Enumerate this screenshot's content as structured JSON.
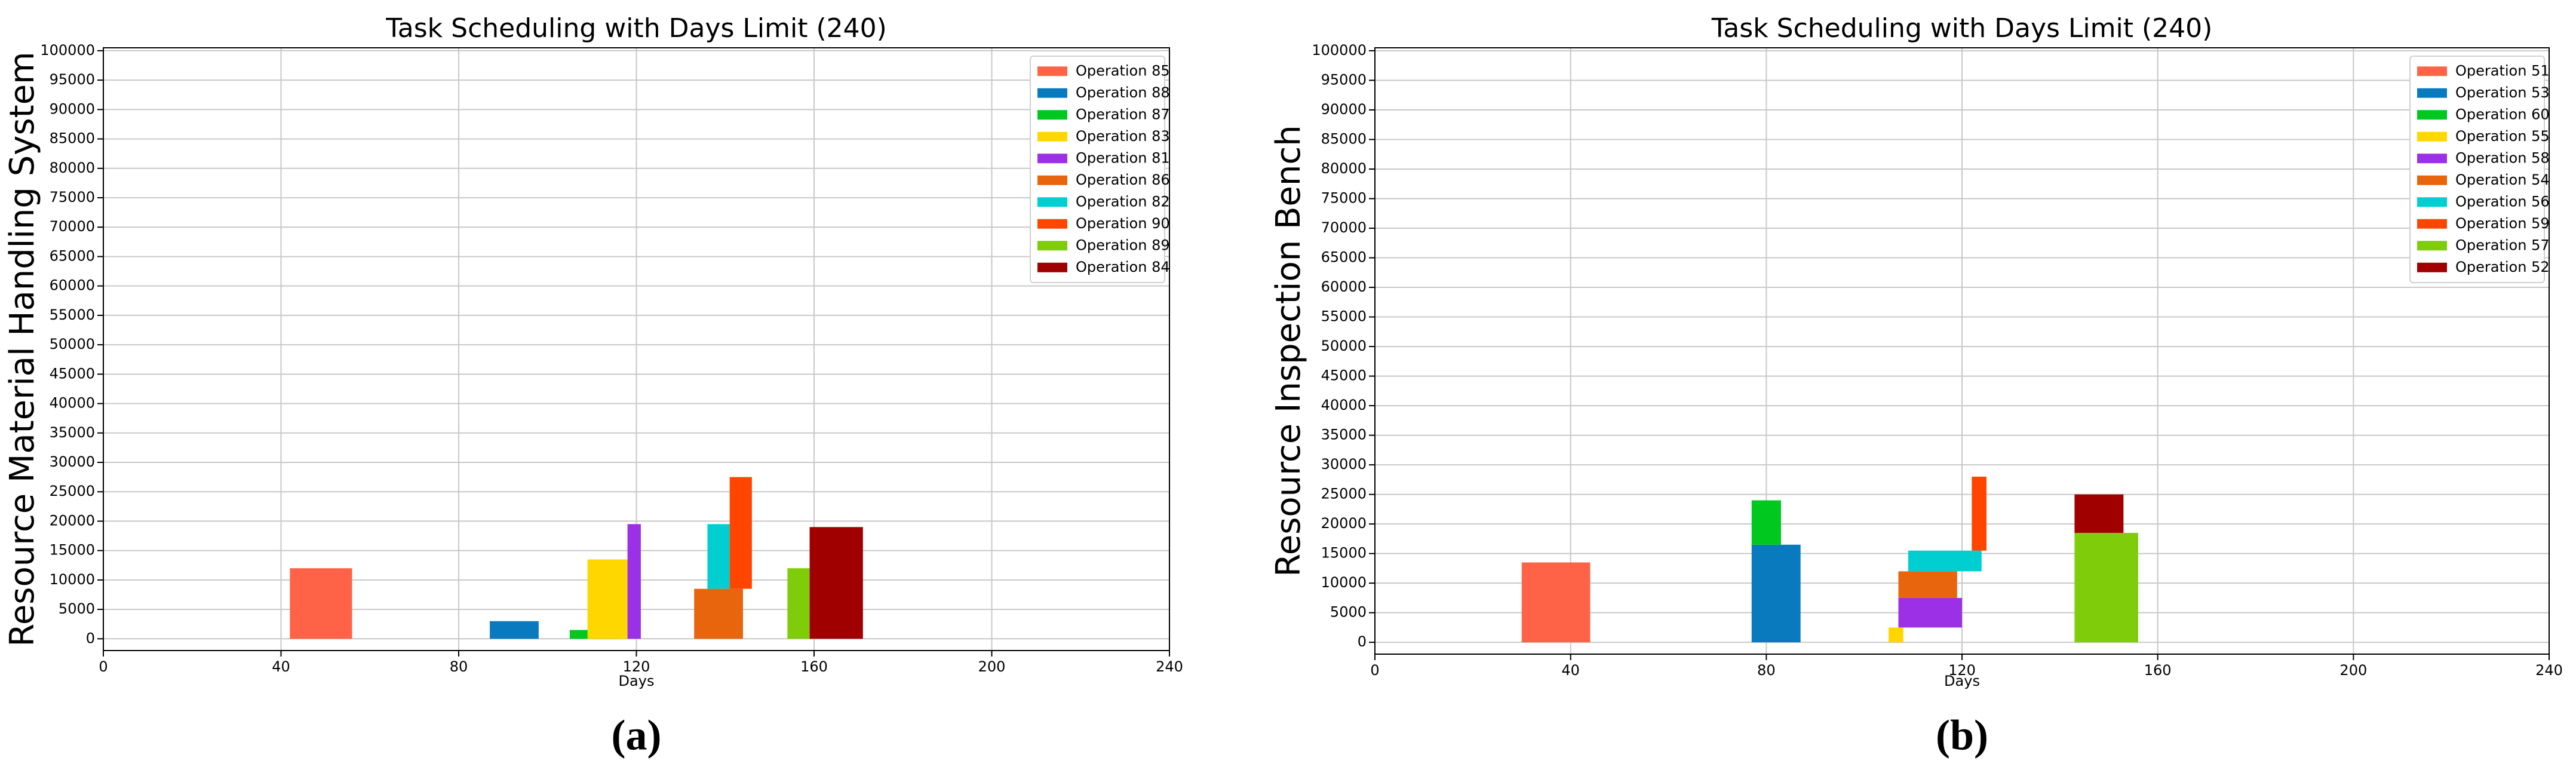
{
  "chart_data": [
    {
      "type": "gantt",
      "title": "Task Scheduling with Days Limit (240)",
      "xlabel": "Days",
      "ylabel": "Resource Material Handling System",
      "caption": "(a)",
      "xlim": [
        0,
        240
      ],
      "xticks": [
        0,
        40,
        80,
        120,
        160,
        200,
        240
      ],
      "ylim": [
        -2000,
        100500
      ],
      "yticks": [
        0,
        5000,
        10000,
        15000,
        20000,
        25000,
        30000,
        35000,
        40000,
        45000,
        50000,
        55000,
        60000,
        65000,
        70000,
        75000,
        80000,
        85000,
        90000,
        95000,
        100000
      ],
      "grid": true,
      "legend": "upper right",
      "series": [
        {
          "name": "Operation 85",
          "color": "#ff6347",
          "start": [
            42
          ],
          "duration": [
            14
          ],
          "base": [
            0
          ],
          "values": [
            12000
          ]
        },
        {
          "name": "Operation 88",
          "color": "#0a7abf",
          "start": [
            87
          ],
          "duration": [
            11
          ],
          "base": [
            0
          ],
          "values": [
            3000
          ]
        },
        {
          "name": "Operation 87",
          "color": "#00c81e",
          "start": [
            105
          ],
          "duration": [
            11
          ],
          "base": [
            0
          ],
          "values": [
            1500
          ]
        },
        {
          "name": "Operation 83",
          "color": "#ffd700",
          "start": [
            109
          ],
          "duration": [
            9
          ],
          "base": [
            0
          ],
          "values": [
            13500
          ]
        },
        {
          "name": "Operation 81",
          "color": "#9b30e6",
          "start": [
            118
          ],
          "duration": [
            3
          ],
          "base": [
            0
          ],
          "values": [
            19500
          ]
        },
        {
          "name": "Operation 86",
          "color": "#e8650e",
          "start": [
            133
          ],
          "duration": [
            11
          ],
          "base": [
            0
          ],
          "values": [
            8500
          ]
        },
        {
          "name": "Operation 82",
          "color": "#00ced1",
          "start": [
            136
          ],
          "duration": [
            5
          ],
          "base": [
            8500
          ],
          "values": [
            11000
          ]
        },
        {
          "name": "Operation 90",
          "color": "#ff4500",
          "start": [
            141
          ],
          "duration": [
            5
          ],
          "base": [
            8500
          ],
          "values": [
            19000
          ]
        },
        {
          "name": "Operation 89",
          "color": "#7fcc0a",
          "start": [
            154
          ],
          "duration": [
            5
          ],
          "base": [
            0
          ],
          "values": [
            12000
          ]
        },
        {
          "name": "Operation 84",
          "color": "#a00000",
          "start": [
            159
          ],
          "duration": [
            12
          ],
          "base": [
            0
          ],
          "values": [
            19000
          ]
        }
      ]
    },
    {
      "type": "gantt",
      "title": "Task Scheduling with Days Limit (240)",
      "xlabel": "Days",
      "ylabel": "Resource Inspection Bench",
      "caption": "(b)",
      "xlim": [
        0,
        240
      ],
      "xticks": [
        0,
        40,
        80,
        120,
        160,
        200,
        240
      ],
      "ylim": [
        -2000,
        100500
      ],
      "yticks": [
        0,
        5000,
        10000,
        15000,
        20000,
        25000,
        30000,
        35000,
        40000,
        45000,
        50000,
        55000,
        60000,
        65000,
        70000,
        75000,
        80000,
        85000,
        90000,
        95000,
        100000
      ],
      "grid": true,
      "legend": "upper right",
      "series": [
        {
          "name": "Operation 51",
          "color": "#ff6347",
          "start": [
            30
          ],
          "duration": [
            14
          ],
          "base": [
            0
          ],
          "values": [
            13500
          ]
        },
        {
          "name": "Operation 53",
          "color": "#0a7abf",
          "start": [
            77
          ],
          "duration": [
            10
          ],
          "base": [
            0
          ],
          "values": [
            16500
          ]
        },
        {
          "name": "Operation 60",
          "color": "#00c81e",
          "start": [
            77
          ],
          "duration": [
            6
          ],
          "base": [
            16500
          ],
          "values": [
            7500
          ]
        },
        {
          "name": "Operation 55",
          "color": "#ffd700",
          "start": [
            105
          ],
          "duration": [
            3
          ],
          "base": [
            0
          ],
          "values": [
            2500
          ]
        },
        {
          "name": "Operation 58",
          "color": "#9b30e6",
          "start": [
            107
          ],
          "duration": [
            13
          ],
          "base": [
            2500
          ],
          "values": [
            5000
          ]
        },
        {
          "name": "Operation 54",
          "color": "#e8650e",
          "start": [
            107
          ],
          "duration": [
            12
          ],
          "base": [
            7500
          ],
          "values": [
            4500
          ]
        },
        {
          "name": "Operation 56",
          "color": "#00ced1",
          "start": [
            109
          ],
          "duration": [
            15
          ],
          "base": [
            12000
          ],
          "values": [
            3500
          ]
        },
        {
          "name": "Operation 59",
          "color": "#ff4500",
          "start": [
            122
          ],
          "duration": [
            3
          ],
          "base": [
            15500
          ],
          "values": [
            12500
          ]
        },
        {
          "name": "Operation 57",
          "color": "#7fcc0a",
          "start": [
            143
          ],
          "duration": [
            13
          ],
          "base": [
            0
          ],
          "values": [
            18500
          ]
        },
        {
          "name": "Operation 52",
          "color": "#a00000",
          "start": [
            143
          ],
          "duration": [
            10
          ],
          "base": [
            18500
          ],
          "values": [
            6500
          ]
        }
      ]
    }
  ]
}
